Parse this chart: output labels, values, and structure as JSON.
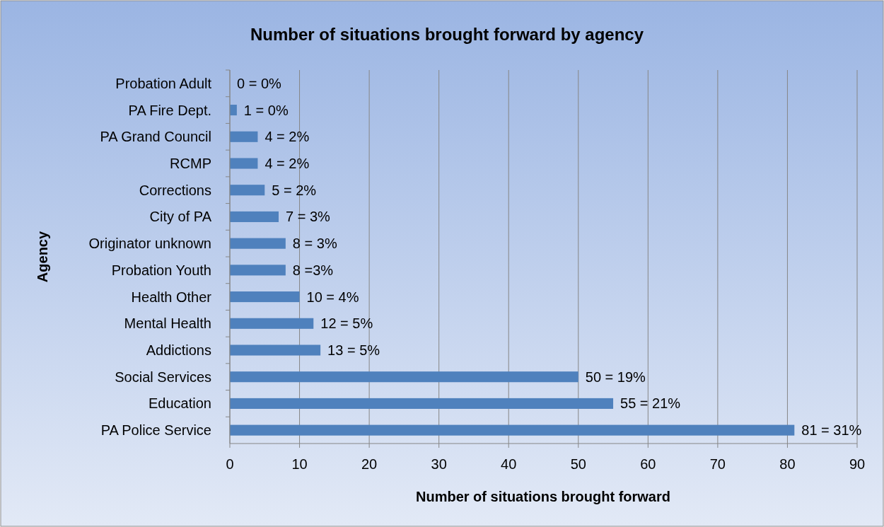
{
  "chart_data": {
    "type": "bar",
    "orientation": "horizontal",
    "title": "Number of situations brought forward by agency",
    "xlabel": "Number of situations brought forward",
    "ylabel": "Agency",
    "categories": [
      "Probation Adult",
      "PA Fire Dept.",
      "PA Grand Council",
      "RCMP",
      "Corrections",
      "City of PA",
      "Originator unknown",
      "Probation Youth",
      "Health Other",
      "Mental Health",
      "Addictions",
      "Social Services",
      "Education",
      "PA Police Service"
    ],
    "values": [
      0,
      1,
      4,
      4,
      5,
      7,
      8,
      8,
      10,
      12,
      13,
      50,
      55,
      81
    ],
    "value_labels": [
      "0 = 0%",
      "1 = 0%",
      "4 = 2%",
      "4 = 2%",
      "5 = 2%",
      "7 = 3%",
      "8 = 3%",
      "8 =3%",
      "10 = 4%",
      "12 = 5%",
      "13 = 5%",
      "50 = 19%",
      "55 = 21%",
      "81 = 31%"
    ],
    "color": "#4f81bd",
    "xlim": [
      0,
      90
    ],
    "xticks": [
      0,
      10,
      20,
      30,
      40,
      50,
      60,
      70,
      80,
      90
    ],
    "grid": "x"
  }
}
